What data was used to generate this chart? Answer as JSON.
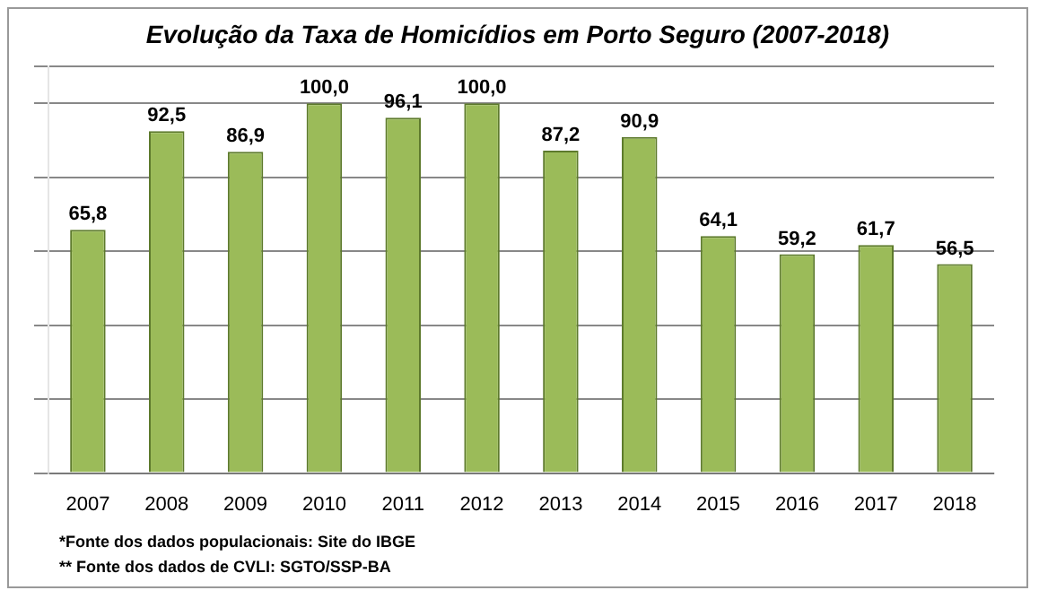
{
  "chart_data": {
    "type": "bar",
    "title": "Evolução da Taxa de Homicídios em Porto Seguro (2007-2018)",
    "categories": [
      "2007",
      "2008",
      "2009",
      "2010",
      "2011",
      "2012",
      "2013",
      "2014",
      "2015",
      "2016",
      "2017",
      "2018"
    ],
    "values": [
      65.8,
      92.5,
      86.9,
      100.0,
      96.1,
      100.0,
      87.2,
      90.9,
      64.1,
      59.2,
      61.7,
      56.5
    ],
    "value_labels": [
      "65,8",
      "92,5",
      "86,9",
      "100,0",
      "96,1",
      "100,0",
      "87,2",
      "90,9",
      "64,1",
      "59,2",
      "61,7",
      "56,5"
    ],
    "color": "#9bbb59",
    "ylim": [
      0,
      110
    ],
    "grid": "y",
    "tick_labels": "x",
    "legend": false,
    "annotations": [
      "*Fonte dos dados populacionais: Site do IBGE",
      "** Fonte dos dados de CVLI: SGTO/SSP-BA"
    ]
  }
}
